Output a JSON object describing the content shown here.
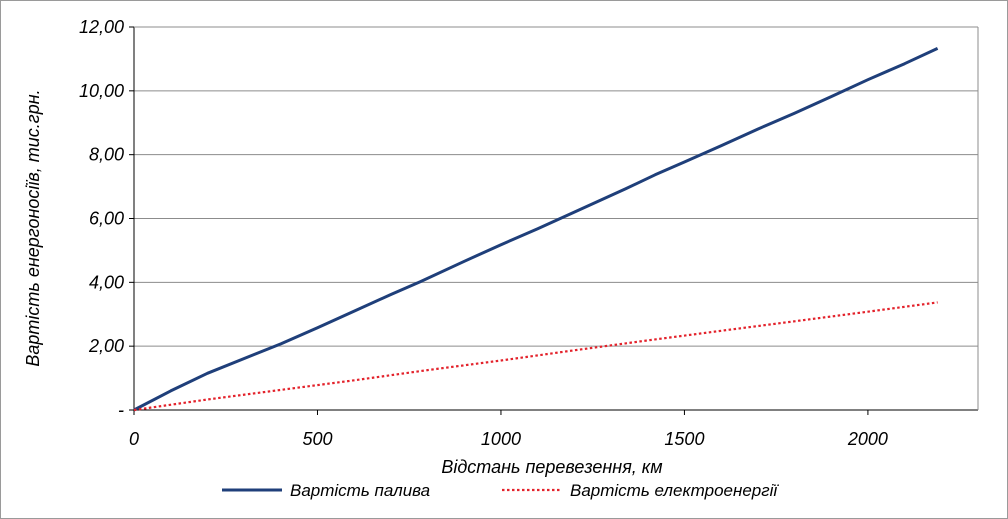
{
  "chart_data": {
    "type": "line",
    "title": "",
    "xlabel": "Відстань перевезення,  км",
    "ylabel": "Вартість енергоносіїв,  тис.грн.",
    "xlim": [
      0,
      2300
    ],
    "ylim": [
      0,
      12
    ],
    "x_ticks": [
      0,
      500,
      1000,
      1500,
      2000
    ],
    "x_tick_labels": [
      "0",
      "500",
      "1000",
      "1500",
      "2000"
    ],
    "y_ticks": [
      0,
      2,
      4,
      6,
      8,
      10,
      12
    ],
    "y_tick_labels": [
      "-",
      "2,00",
      "4,00",
      "6,00",
      "8,00",
      "10,00",
      "12,00"
    ],
    "grid": "horizontal",
    "legend_position": "bottom",
    "series": [
      {
        "name": "Вартість палива",
        "color": "#1f3f7a",
        "style": "solid",
        "x": [
          0,
          100,
          200,
          330,
          400,
          500,
          600,
          700,
          780,
          900,
          1000,
          1100,
          1200,
          1340,
          1420,
          1500,
          1600,
          1700,
          1800,
          1900,
          2000,
          2100,
          2190
        ],
        "y": [
          0,
          0.6,
          1.15,
          1.75,
          2.07,
          2.58,
          3.1,
          3.62,
          4.02,
          4.66,
          5.18,
          5.68,
          6.2,
          6.93,
          7.37,
          7.77,
          8.28,
          8.8,
          9.3,
          9.82,
          10.35,
          10.85,
          11.33
        ]
      },
      {
        "name": "Вартість електроенергії",
        "color": "#e3222b",
        "style": "dotted",
        "x": [
          0,
          200,
          400,
          600,
          800,
          1000,
          1200,
          1400,
          1600,
          1800,
          2000,
          2190
        ],
        "y": [
          0,
          0.33,
          0.63,
          0.93,
          1.25,
          1.55,
          1.87,
          2.18,
          2.48,
          2.78,
          3.08,
          3.37
        ]
      }
    ]
  }
}
